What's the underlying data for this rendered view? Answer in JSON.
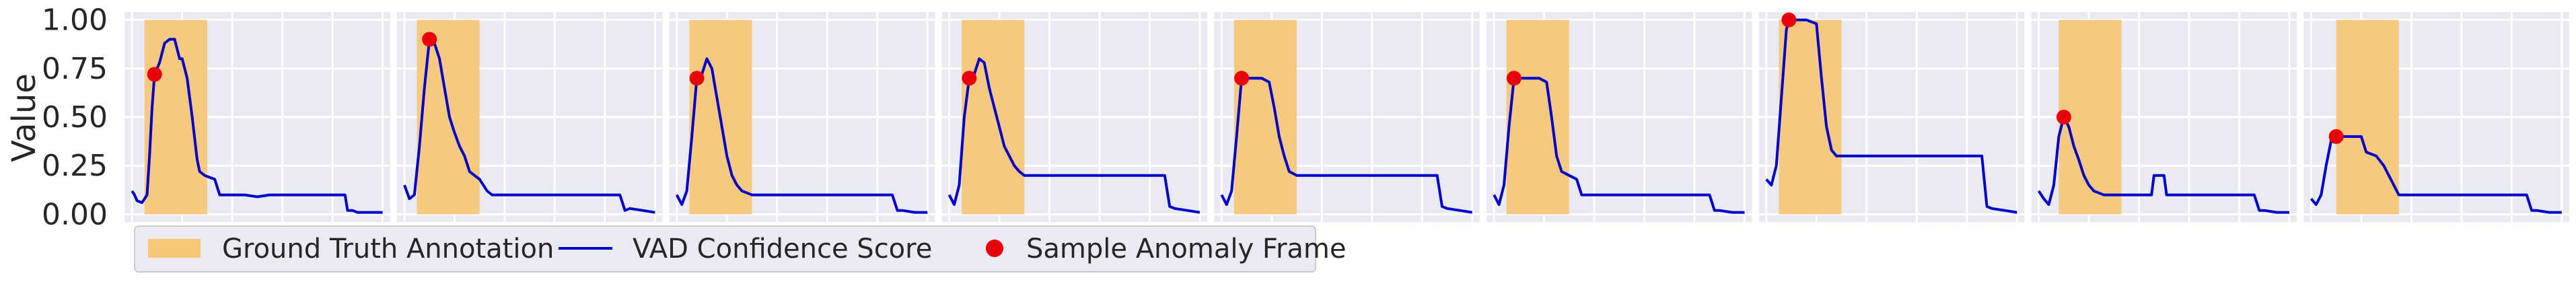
{
  "chart_data": {
    "type": "line",
    "ylabel": "Value",
    "ylim": [
      -0.04,
      1.04
    ],
    "xlim": [
      -0.03,
      1.03
    ],
    "y_ticks": [
      0.0,
      0.25,
      0.5,
      0.75,
      1.0
    ],
    "y_tick_labels": [
      "0.00",
      "0.25",
      "0.50",
      "0.75",
      "1.00"
    ],
    "x_gridlines": [
      0,
      0.2,
      0.4,
      0.6,
      0.8,
      1.0
    ],
    "grid": true,
    "style": "seaborn-darkgrid",
    "legend_position": "bottom-left, below axes",
    "colors": {
      "background": "#eaeaf2",
      "grid": "#ffffff",
      "annotation": "#f5c877",
      "line": "#0000cd",
      "marker": "#e8000b"
    },
    "legend": [
      {
        "label": "Ground Truth Annotation",
        "kind": "patch",
        "color": "#f5c877"
      },
      {
        "label": "VAD Confidence Score",
        "kind": "line",
        "color": "#0000cd"
      },
      {
        "label": "Sample Anomaly Frame",
        "kind": "marker",
        "color": "#e8000b"
      }
    ],
    "panels": [
      {
        "annotation": [
          0.05,
          0.3
        ],
        "marker": {
          "x": 0.09,
          "y": 0.72
        },
        "x": [
          0.0,
          0.01,
          0.02,
          0.04,
          0.06,
          0.07,
          0.08,
          0.09,
          0.11,
          0.13,
          0.15,
          0.17,
          0.19,
          0.2,
          0.22,
          0.24,
          0.26,
          0.27,
          0.29,
          0.31,
          0.33,
          0.35,
          0.4,
          0.45,
          0.5,
          0.55,
          0.6,
          0.65,
          0.7,
          0.75,
          0.8,
          0.85,
          0.86,
          0.88,
          0.9,
          0.95,
          1.0
        ],
        "y": [
          0.12,
          0.1,
          0.07,
          0.06,
          0.1,
          0.3,
          0.55,
          0.72,
          0.78,
          0.88,
          0.9,
          0.9,
          0.8,
          0.8,
          0.7,
          0.5,
          0.28,
          0.22,
          0.2,
          0.19,
          0.18,
          0.1,
          0.1,
          0.1,
          0.09,
          0.1,
          0.1,
          0.1,
          0.1,
          0.1,
          0.1,
          0.1,
          0.02,
          0.02,
          0.01,
          0.01,
          0.01
        ]
      },
      {
        "annotation": [
          0.05,
          0.3
        ],
        "marker": {
          "x": 0.1,
          "y": 0.9
        },
        "x": [
          0.0,
          0.02,
          0.04,
          0.06,
          0.08,
          0.1,
          0.12,
          0.14,
          0.16,
          0.18,
          0.2,
          0.22,
          0.24,
          0.26,
          0.28,
          0.3,
          0.33,
          0.35,
          0.4,
          0.5,
          0.6,
          0.7,
          0.8,
          0.86,
          0.88,
          0.9,
          0.95,
          1.0
        ],
        "y": [
          0.15,
          0.08,
          0.1,
          0.35,
          0.65,
          0.9,
          0.88,
          0.8,
          0.65,
          0.5,
          0.42,
          0.35,
          0.3,
          0.22,
          0.2,
          0.18,
          0.12,
          0.1,
          0.1,
          0.1,
          0.1,
          0.1,
          0.1,
          0.1,
          0.02,
          0.03,
          0.02,
          0.01
        ]
      },
      {
        "annotation": [
          0.05,
          0.3
        ],
        "marker": {
          "x": 0.08,
          "y": 0.7
        },
        "x": [
          0.0,
          0.02,
          0.04,
          0.06,
          0.08,
          0.1,
          0.12,
          0.14,
          0.16,
          0.18,
          0.2,
          0.22,
          0.24,
          0.26,
          0.28,
          0.3,
          0.33,
          0.4,
          0.5,
          0.6,
          0.7,
          0.8,
          0.86,
          0.88,
          0.9,
          0.95,
          1.0
        ],
        "y": [
          0.1,
          0.05,
          0.12,
          0.4,
          0.7,
          0.72,
          0.8,
          0.75,
          0.6,
          0.45,
          0.3,
          0.2,
          0.15,
          0.12,
          0.11,
          0.1,
          0.1,
          0.1,
          0.1,
          0.1,
          0.1,
          0.1,
          0.1,
          0.02,
          0.02,
          0.01,
          0.01
        ]
      },
      {
        "annotation": [
          0.05,
          0.3
        ],
        "marker": {
          "x": 0.08,
          "y": 0.7
        },
        "x": [
          0.0,
          0.02,
          0.04,
          0.06,
          0.08,
          0.1,
          0.12,
          0.14,
          0.16,
          0.18,
          0.2,
          0.22,
          0.24,
          0.26,
          0.28,
          0.3,
          0.33,
          0.4,
          0.5,
          0.6,
          0.7,
          0.8,
          0.86,
          0.88,
          0.9,
          0.95,
          1.0
        ],
        "y": [
          0.1,
          0.05,
          0.15,
          0.5,
          0.7,
          0.72,
          0.8,
          0.78,
          0.65,
          0.55,
          0.45,
          0.35,
          0.3,
          0.25,
          0.22,
          0.2,
          0.2,
          0.2,
          0.2,
          0.2,
          0.2,
          0.2,
          0.2,
          0.04,
          0.03,
          0.02,
          0.01
        ]
      },
      {
        "annotation": [
          0.05,
          0.3
        ],
        "marker": {
          "x": 0.08,
          "y": 0.7
        },
        "x": [
          0.0,
          0.02,
          0.04,
          0.06,
          0.08,
          0.1,
          0.13,
          0.16,
          0.19,
          0.21,
          0.23,
          0.25,
          0.27,
          0.3,
          0.35,
          0.4,
          0.5,
          0.6,
          0.7,
          0.8,
          0.86,
          0.88,
          0.9,
          0.95,
          1.0
        ],
        "y": [
          0.1,
          0.05,
          0.12,
          0.4,
          0.7,
          0.7,
          0.7,
          0.7,
          0.68,
          0.55,
          0.4,
          0.3,
          0.22,
          0.2,
          0.2,
          0.2,
          0.2,
          0.2,
          0.2,
          0.2,
          0.2,
          0.04,
          0.03,
          0.02,
          0.01
        ]
      },
      {
        "annotation": [
          0.05,
          0.3
        ],
        "marker": {
          "x": 0.08,
          "y": 0.7
        },
        "x": [
          0.0,
          0.02,
          0.04,
          0.06,
          0.08,
          0.1,
          0.14,
          0.18,
          0.21,
          0.23,
          0.25,
          0.27,
          0.3,
          0.33,
          0.35,
          0.4,
          0.5,
          0.6,
          0.7,
          0.8,
          0.86,
          0.88,
          0.9,
          0.95,
          1.0
        ],
        "y": [
          0.1,
          0.05,
          0.15,
          0.45,
          0.7,
          0.7,
          0.7,
          0.7,
          0.68,
          0.5,
          0.3,
          0.22,
          0.2,
          0.18,
          0.1,
          0.1,
          0.1,
          0.1,
          0.1,
          0.1,
          0.1,
          0.02,
          0.02,
          0.01,
          0.01
        ]
      },
      {
        "annotation": [
          0.05,
          0.3
        ],
        "marker": {
          "x": 0.09,
          "y": 1.0
        },
        "x": [
          0.0,
          0.02,
          0.04,
          0.06,
          0.08,
          0.09,
          0.12,
          0.16,
          0.2,
          0.22,
          0.24,
          0.26,
          0.28,
          0.3,
          0.33,
          0.4,
          0.5,
          0.6,
          0.7,
          0.8,
          0.86,
          0.88,
          0.9,
          0.95,
          1.0
        ],
        "y": [
          0.18,
          0.15,
          0.25,
          0.6,
          0.95,
          1.0,
          1.0,
          1.0,
          0.98,
          0.7,
          0.45,
          0.33,
          0.3,
          0.3,
          0.3,
          0.3,
          0.3,
          0.3,
          0.3,
          0.3,
          0.3,
          0.04,
          0.03,
          0.02,
          0.01
        ]
      },
      {
        "annotation": [
          0.08,
          0.33
        ],
        "marker": {
          "x": 0.1,
          "y": 0.5
        },
        "x": [
          0.0,
          0.02,
          0.04,
          0.06,
          0.08,
          0.1,
          0.12,
          0.14,
          0.16,
          0.18,
          0.2,
          0.22,
          0.24,
          0.26,
          0.28,
          0.3,
          0.35,
          0.4,
          0.45,
          0.46,
          0.5,
          0.51,
          0.55,
          0.6,
          0.7,
          0.8,
          0.86,
          0.88,
          0.9,
          0.95,
          1.0
        ],
        "y": [
          0.12,
          0.08,
          0.05,
          0.15,
          0.4,
          0.5,
          0.45,
          0.35,
          0.28,
          0.2,
          0.15,
          0.12,
          0.11,
          0.1,
          0.1,
          0.1,
          0.1,
          0.1,
          0.1,
          0.2,
          0.2,
          0.1,
          0.1,
          0.1,
          0.1,
          0.1,
          0.1,
          0.02,
          0.02,
          0.01,
          0.01
        ]
      },
      {
        "annotation": [
          0.1,
          0.35
        ],
        "marker": {
          "x": 0.1,
          "y": 0.4
        },
        "x": [
          0.0,
          0.02,
          0.04,
          0.06,
          0.08,
          0.1,
          0.12,
          0.16,
          0.2,
          0.22,
          0.26,
          0.29,
          0.31,
          0.33,
          0.35,
          0.4,
          0.5,
          0.6,
          0.7,
          0.8,
          0.86,
          0.88,
          0.9,
          0.95,
          1.0
        ],
        "y": [
          0.08,
          0.05,
          0.1,
          0.25,
          0.38,
          0.4,
          0.4,
          0.4,
          0.4,
          0.32,
          0.3,
          0.25,
          0.2,
          0.15,
          0.1,
          0.1,
          0.1,
          0.1,
          0.1,
          0.1,
          0.1,
          0.02,
          0.02,
          0.01,
          0.01
        ]
      }
    ]
  }
}
